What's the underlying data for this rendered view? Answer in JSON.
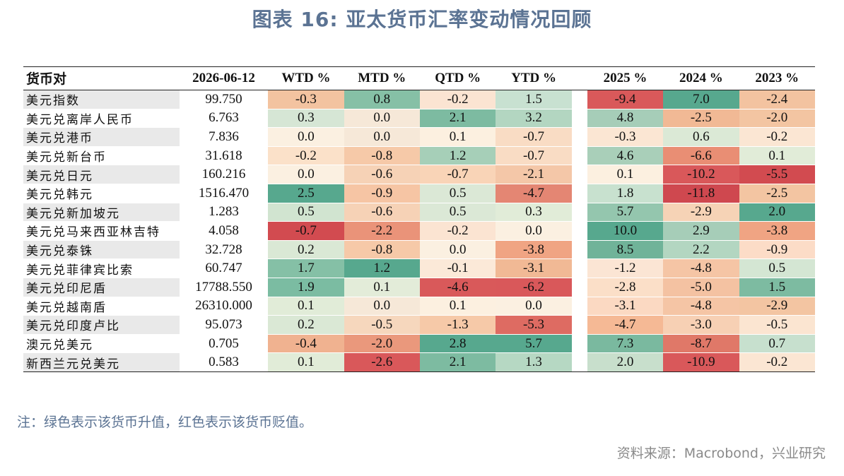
{
  "title": "图表 16: 亚太货币汇率变动情况回顾",
  "table": {
    "headers": [
      "货币对",
      "2026-06-12",
      "WTD %",
      "MTD %",
      "QTD %",
      "YTD %",
      "2025 %",
      "2024 %",
      "2023 %"
    ],
    "rows": [
      {
        "name": "美元指数",
        "value": "99.750",
        "pct": [
          "-0.3",
          "0.8",
          "-0.2",
          "1.5",
          "-9.4",
          "7.0",
          "-2.4"
        ]
      },
      {
        "name": "美元兑离岸人民币",
        "value": "6.763",
        "pct": [
          "0.3",
          "0.0",
          "2.1",
          "3.2",
          "4.8",
          "-2.5",
          "-2.0"
        ]
      },
      {
        "name": "美元兑港币",
        "value": "7.836",
        "pct": [
          "0.0",
          "0.0",
          "0.1",
          "-0.7",
          "-0.3",
          "0.6",
          "-0.2"
        ]
      },
      {
        "name": "美元兑新台币",
        "value": "31.618",
        "pct": [
          "-0.2",
          "-0.8",
          "1.2",
          "-0.7",
          "4.6",
          "-6.6",
          "0.1"
        ]
      },
      {
        "name": "美元兑日元",
        "value": "160.216",
        "pct": [
          "0.0",
          "-0.6",
          "-0.7",
          "-2.1",
          "0.1",
          "-10.2",
          "-5.5"
        ]
      },
      {
        "name": "美元兑韩元",
        "value": "1516.470",
        "pct": [
          "2.5",
          "-0.9",
          "0.5",
          "-4.7",
          "1.8",
          "-11.8",
          "-2.5"
        ]
      },
      {
        "name": "美元兑新加坡元",
        "value": "1.283",
        "pct": [
          "0.5",
          "-0.6",
          "0.5",
          "0.3",
          "5.7",
          "-2.9",
          "2.0"
        ]
      },
      {
        "name": "美元兑马来西亚林吉特",
        "value": "4.058",
        "pct": [
          "-0.7",
          "-2.2",
          "-0.2",
          "0.0",
          "10.0",
          "2.9",
          "-3.8"
        ]
      },
      {
        "name": "美元兑泰铢",
        "value": "32.728",
        "pct": [
          "0.2",
          "-0.8",
          "0.0",
          "-3.8",
          "8.5",
          "2.2",
          "-0.9"
        ]
      },
      {
        "name": "美元兑菲律宾比索",
        "value": "60.747",
        "pct": [
          "1.7",
          "1.2",
          "-0.1",
          "-3.1",
          "-1.2",
          "-4.8",
          "0.5"
        ]
      },
      {
        "name": "美元兑印尼盾",
        "value": "17788.550",
        "pct": [
          "1.9",
          "0.1",
          "-4.6",
          "-6.2",
          "-2.8",
          "-5.0",
          "1.5"
        ]
      },
      {
        "name": "美元兑越南盾",
        "value": "26310.000",
        "pct": [
          "0.1",
          "0.0",
          "0.1",
          "0.0",
          "-3.1",
          "-4.8",
          "-2.9"
        ]
      },
      {
        "name": "美元兑印度卢比",
        "value": "95.073",
        "pct": [
          "0.2",
          "-0.5",
          "-1.3",
          "-5.3",
          "-4.7",
          "-3.0",
          "-0.5"
        ]
      },
      {
        "name": "澳元兑美元",
        "value": "0.705",
        "pct": [
          "-0.4",
          "-2.0",
          "2.8",
          "5.7",
          "7.3",
          "-8.7",
          "0.7"
        ]
      },
      {
        "name": "新西兰元兑美元",
        "value": "0.583",
        "pct": [
          "0.1",
          "-2.6",
          "2.1",
          "1.3",
          "2.0",
          "-10.9",
          "-0.2"
        ]
      }
    ],
    "cell_colors": [
      [
        "#f3c3a0",
        "#86c0a6",
        "#fbe4d2",
        "#c8e1d1",
        "#d9595a",
        "#57a88e",
        "#f3c3a0"
      ],
      [
        "#d6e6d5",
        "#f6e8d8",
        "#7dbba1",
        "#b3d6c1",
        "#a6cdb8",
        "#f1b995",
        "#f3c5a2"
      ],
      [
        "#fbf0e1",
        "#f6e8d8",
        "#fcf0e0",
        "#f9dcc4",
        "#fbe6d3",
        "#dbe9d6",
        "#fbe6d3"
      ],
      [
        "#fbe1c9",
        "#f6c9a8",
        "#a6cfb8",
        "#f9dcc4",
        "#a9cfb9",
        "#e98e74",
        "#e1ecd8"
      ],
      [
        "#fbf0e1",
        "#f6d2b6",
        "#f9d4b7",
        "#f4c7a8",
        "#fcf0e0",
        "#d9585a",
        "#d24b50"
      ],
      [
        "#57a88e",
        "#f6c5a4",
        "#dbe8d6",
        "#e48673",
        "#c8e1cf",
        "#cf484f",
        "#f3c5a2"
      ],
      [
        "#d1e4d0",
        "#f6d2b6",
        "#dbe8d6",
        "#e1ecd8",
        "#94c6ae",
        "#f6d3b6",
        "#57a88e"
      ],
      [
        "#d24b50",
        "#ea9379",
        "#fbe4d2",
        "#fbf0e1",
        "#57a88e",
        "#a6cdb8",
        "#f0a483"
      ],
      [
        "#dae8d5",
        "#f6c9a8",
        "#fbf0e1",
        "#f0a483",
        "#70b399",
        "#b3d6c1",
        "#fcdcc7"
      ],
      [
        "#85c0a6",
        "#57a88e",
        "#fbe9d8",
        "#f1b995",
        "#fbe5d4",
        "#f5c5a5",
        "#d4e6d3"
      ],
      [
        "#7bbca2",
        "#e3ecd9",
        "#d9595a",
        "#d9585a",
        "#fbdfc8",
        "#f4c2a2",
        "#7dbba1"
      ],
      [
        "#e1ecd8",
        "#f6e8d8",
        "#fcf0e0",
        "#fbf0e1",
        "#fbd9c2",
        "#f5c5a5",
        "#f3c5a2"
      ],
      [
        "#dae8d5",
        "#f6d7bd",
        "#f6c9a8",
        "#de6b62",
        "#f5b995",
        "#f7d0b4",
        "#fbe5d1"
      ],
      [
        "#f0b290",
        "#ea987c",
        "#57a88e",
        "#57a88e",
        "#7ab99f",
        "#e07868",
        "#c7e0ce"
      ],
      [
        "#e1ecd8",
        "#d9585a",
        "#7dbba1",
        "#b6d8c3",
        "#c8dfcc",
        "#d9585a",
        "#fbe6d3"
      ]
    ]
  },
  "note": "注：绿色表示该货币升值，红色表示该货币贬值。",
  "source": "资料来源：Macrobond，兴业研究"
}
